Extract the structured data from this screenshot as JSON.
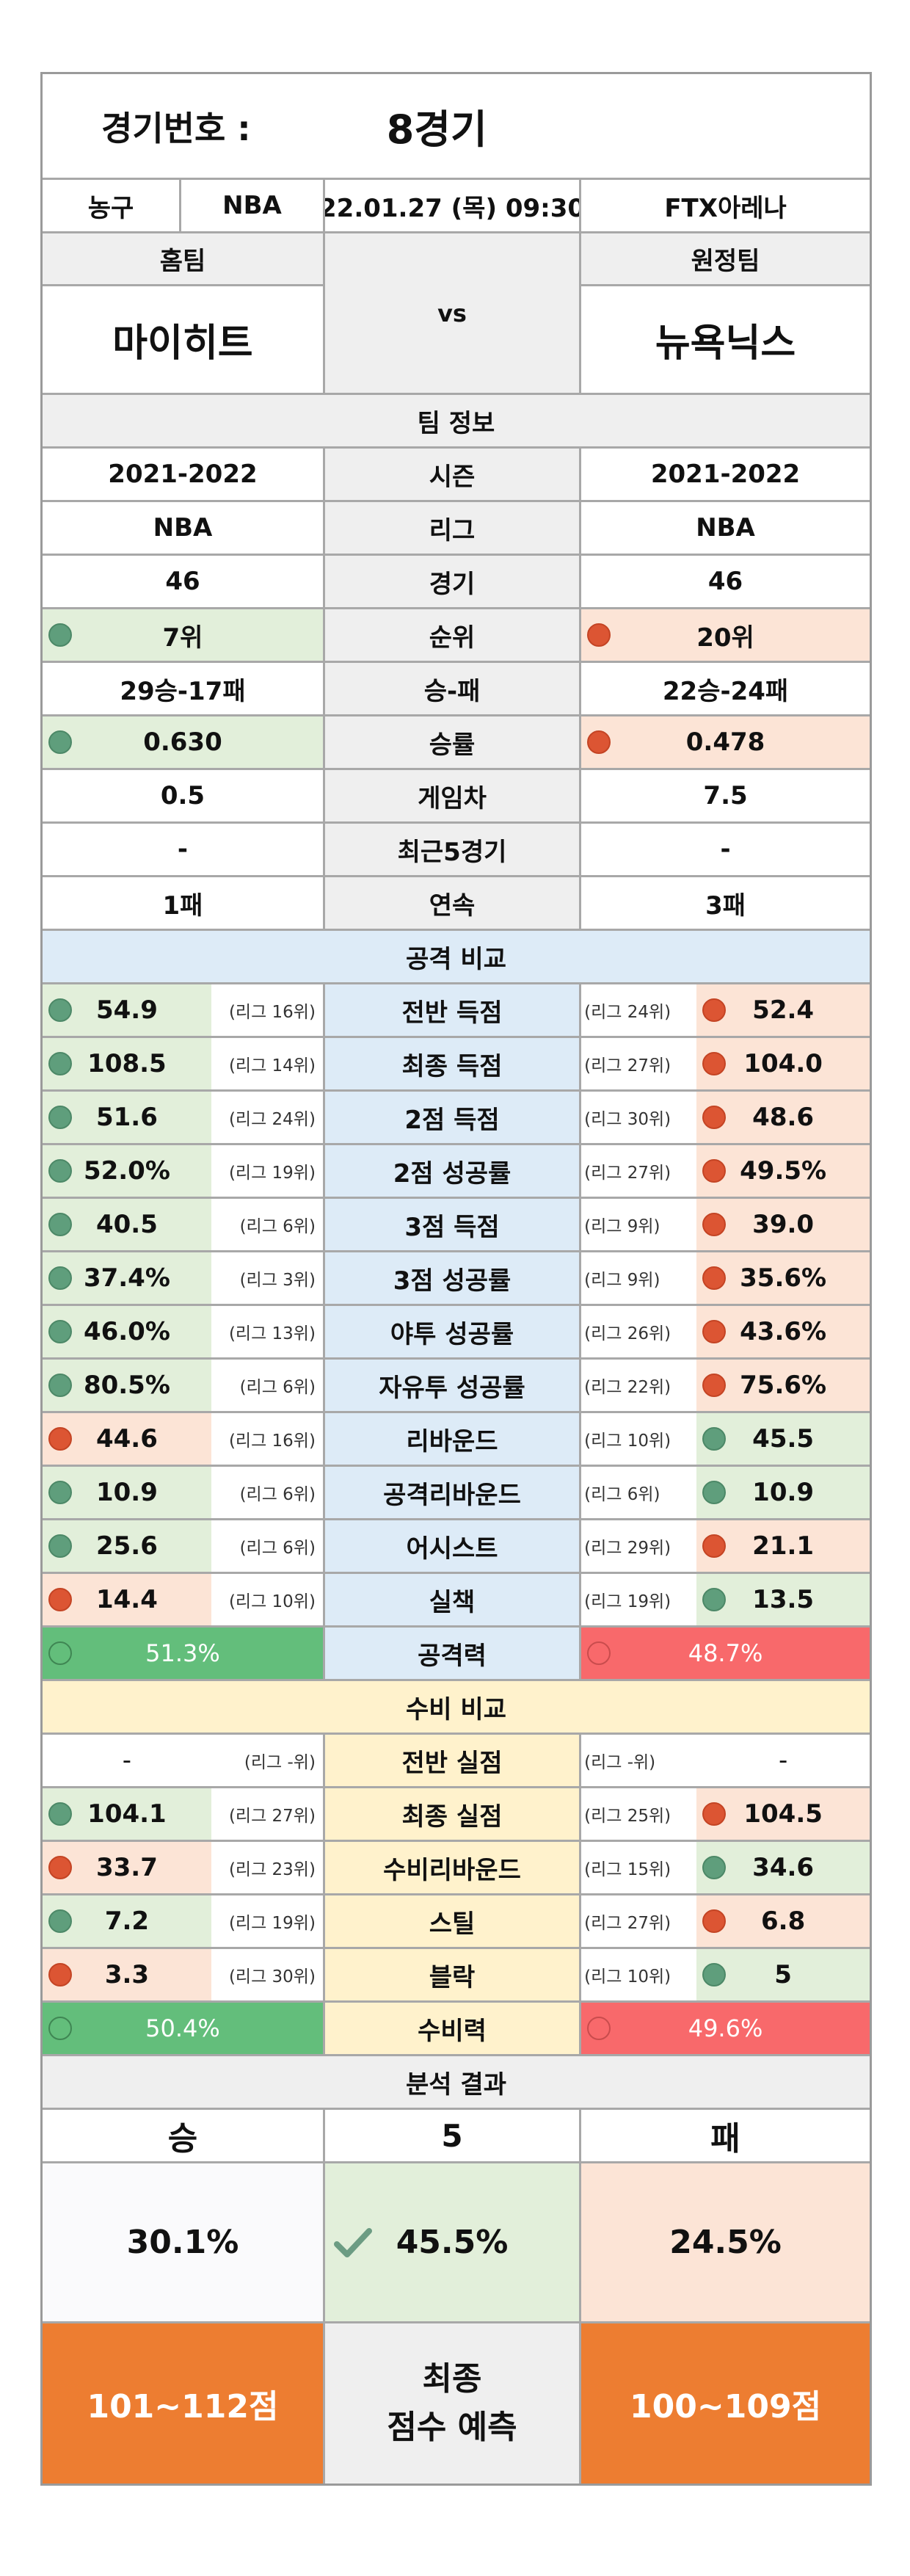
{
  "header": {
    "label": "경기번호 :",
    "game": "8경기"
  },
  "info": {
    "sport": "농구",
    "league": "NBA",
    "datetime": "22.01.27 (목) 09:30",
    "venue": "FTX아레나"
  },
  "teams": {
    "home_label": "홈팀",
    "away_label": "원정팀",
    "vs": "vs",
    "home": "마이히트",
    "away": "뉴욕닉스"
  },
  "team_info": {
    "title": "팀 정보",
    "rows": [
      {
        "label": "시즌",
        "home": "2021-2022",
        "away": "2021-2022"
      },
      {
        "label": "리그",
        "home": "NBA",
        "away": "NBA"
      },
      {
        "label": "경기",
        "home": "46",
        "away": "46"
      },
      {
        "label": "순위",
        "home": "7위",
        "away": "20위"
      },
      {
        "label": "승-패",
        "home": "29승-17패",
        "away": "22승-24패"
      },
      {
        "label": "승률",
        "home": "0.630",
        "away": "0.478"
      },
      {
        "label": "게임차",
        "home": "0.5",
        "away": "7.5"
      },
      {
        "label": "최근5경기",
        "home": "-",
        "away": "-"
      },
      {
        "label": "연속",
        "home": "1패",
        "away": "3패"
      }
    ]
  },
  "attack": {
    "title": "공격 비교",
    "rows": [
      {
        "label": "전반 득점",
        "home": "54.9",
        "home_rank": "(리그 16위)",
        "away_rank": "(리그 24위)",
        "away": "52.4"
      },
      {
        "label": "최종 득점",
        "home": "108.5",
        "home_rank": "(리그 14위)",
        "away_rank": "(리그 27위)",
        "away": "104.0"
      },
      {
        "label": "2점 득점",
        "home": "51.6",
        "home_rank": "(리그 24위)",
        "away_rank": "(리그 30위)",
        "away": "48.6"
      },
      {
        "label": "2점 성공률",
        "home": "52.0%",
        "home_rank": "(리그 19위)",
        "away_rank": "(리그 27위)",
        "away": "49.5%"
      },
      {
        "label": "3점 득점",
        "home": "40.5",
        "home_rank": "(리그 6위)",
        "away_rank": "(리그 9위)",
        "away": "39.0"
      },
      {
        "label": "3점 성공률",
        "home": "37.4%",
        "home_rank": "(리그 3위)",
        "away_rank": "(리그 9위)",
        "away": "35.6%"
      },
      {
        "label": "야투 성공률",
        "home": "46.0%",
        "home_rank": "(리그 13위)",
        "away_rank": "(리그 26위)",
        "away": "43.6%"
      },
      {
        "label": "자유투 성공률",
        "home": "80.5%",
        "home_rank": "(리그 6위)",
        "away_rank": "(리그 22위)",
        "away": "75.6%"
      },
      {
        "label": "리바운드",
        "home": "44.6",
        "home_rank": "(리그 16위)",
        "away_rank": "(리그 10위)",
        "away": "45.5"
      },
      {
        "label": "공격리바운드",
        "home": "10.9",
        "home_rank": "(리그 6위)",
        "away_rank": "(리그 6위)",
        "away": "10.9"
      },
      {
        "label": "어시스트",
        "home": "25.6",
        "home_rank": "(리그 6위)",
        "away_rank": "(리그 29위)",
        "away": "21.1"
      },
      {
        "label": "실책",
        "home": "14.4",
        "home_rank": "(리그 10위)",
        "away_rank": "(리그 19위)",
        "away": "13.5"
      }
    ],
    "power_label": "공격력",
    "home_power": "51.3%",
    "away_power": "48.7%"
  },
  "defense": {
    "title": "수비 비교",
    "rows": [
      {
        "label": "전반 실점",
        "home": "-",
        "home_rank": "(리그 -위)",
        "away_rank": "(리그 -위)",
        "away": "-"
      },
      {
        "label": "최종 실점",
        "home": "104.1",
        "home_rank": "(리그 27위)",
        "away_rank": "(리그 25위)",
        "away": "104.5"
      },
      {
        "label": "수비리바운드",
        "home": "33.7",
        "home_rank": "(리그 23위)",
        "away_rank": "(리그 15위)",
        "away": "34.6"
      },
      {
        "label": "스틸",
        "home": "7.2",
        "home_rank": "(리그 19위)",
        "away_rank": "(리그 27위)",
        "away": "6.8"
      },
      {
        "label": "블락",
        "home": "3.3",
        "home_rank": "(리그 30위)",
        "away_rank": "(리그 10위)",
        "away": "5"
      }
    ],
    "power_label": "수비력",
    "home_power": "50.4%",
    "away_power": "49.6%"
  },
  "result": {
    "title": "분석 결과",
    "win": "승",
    "draw": "5",
    "loss": "패",
    "win_pct": "30.1%",
    "draw_pct": "45.5%",
    "loss_pct": "24.5%",
    "home_score": "101~112점",
    "predict_line1": "최종",
    "predict_line2": "점수 예측",
    "away_score": "100~109점"
  }
}
